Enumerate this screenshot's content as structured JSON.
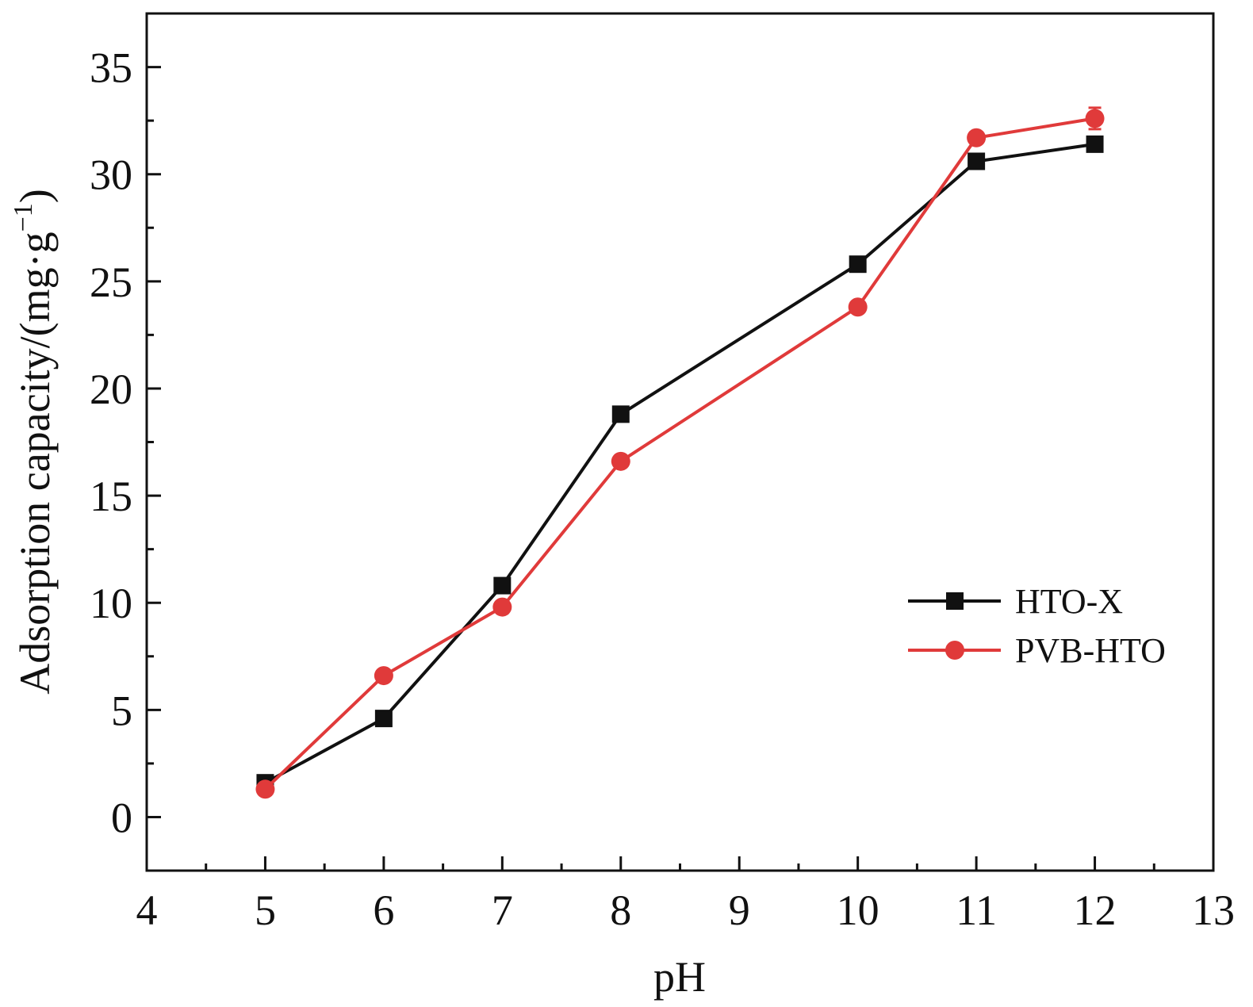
{
  "chart_data": {
    "type": "line",
    "xlabel": "pH",
    "ylabel": "Adsorption capacity/(mg·g",
    "ylabel_sup": "−1",
    "ylabel_close": ")",
    "xlim": [
      4,
      13
    ],
    "ylim": [
      -2.5,
      37.5
    ],
    "xticks": [
      4,
      5,
      6,
      7,
      8,
      9,
      10,
      11,
      12,
      13
    ],
    "yticks": [
      0,
      5,
      10,
      15,
      20,
      25,
      30,
      35
    ],
    "grid": false,
    "legend_position": "lower-right",
    "series": [
      {
        "name": "HTO-X",
        "color": "#111111",
        "marker": "square",
        "x": [
          5,
          6,
          7,
          8,
          10,
          11,
          12
        ],
        "y": [
          1.6,
          4.6,
          10.8,
          18.8,
          25.8,
          30.6,
          31.4
        ]
      },
      {
        "name": "PVB-HTO",
        "color": "#e03a3a",
        "marker": "circle",
        "x": [
          5,
          6,
          7,
          8,
          10,
          11,
          12
        ],
        "y": [
          1.3,
          6.6,
          9.8,
          16.6,
          23.8,
          31.7,
          32.6
        ],
        "error": [
          0,
          0,
          0,
          0,
          0,
          0,
          0.5
        ]
      }
    ]
  }
}
